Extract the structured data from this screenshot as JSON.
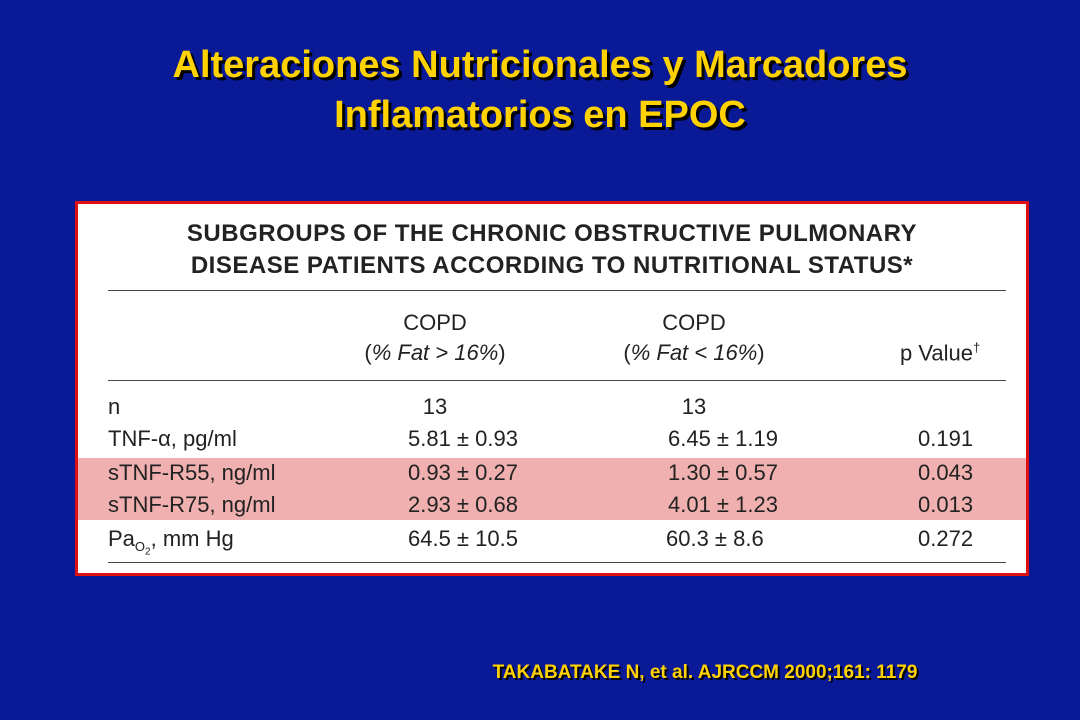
{
  "slide": {
    "title_line1": "Alteraciones Nutricionales  y  Marcadores",
    "title_line2": "Inflamatorios en  EPOC",
    "citation": "TAKABATAKE N, et al. AJRCCM 2000;161: 1179"
  },
  "table": {
    "title_line1": "SUBGROUPS OF THE CHRONIC OBSTRUCTIVE PULMONARY",
    "title_line2": "DISEASE PATIENTS ACCORDING TO NUTRITIONAL STATUS*",
    "columns": [
      {
        "label": "COPD",
        "sub_open": "(",
        "sub_italic": "% Fat > 16%",
        "sub_close": ")"
      },
      {
        "label": "COPD",
        "sub_open": "(",
        "sub_italic": "% Fat < 16%",
        "sub_close": ")"
      },
      {
        "label": "p Value",
        "mark": "†"
      }
    ],
    "rows": [
      {
        "label": "n",
        "a": "13",
        "b": "13",
        "p": ""
      },
      {
        "label": "TNF-α, pg/ml",
        "a": "5.81 ± 0.93",
        "b": "6.45 ± 1.19",
        "p": "0.191"
      },
      {
        "label": "sTNF-R55, ng/ml",
        "a": "0.93 ± 0.27",
        "b": "1.30 ± 0.57",
        "p": "0.043",
        "highlight": true
      },
      {
        "label": "sTNF-R75, ng/ml",
        "a": "2.93 ± 0.68",
        "b": "4.01 ± 1.23",
        "p": "0.013",
        "highlight": true
      },
      {
        "label_pre": "Pa",
        "label_sub": "O",
        "label_subsub": "2",
        "label_post": ", mm Hg",
        "a": "64.5 ± 10.5",
        "b": "60.3 ± 8.6",
        "p": "0.272"
      }
    ],
    "highlight_color": "#f0b0b0"
  }
}
